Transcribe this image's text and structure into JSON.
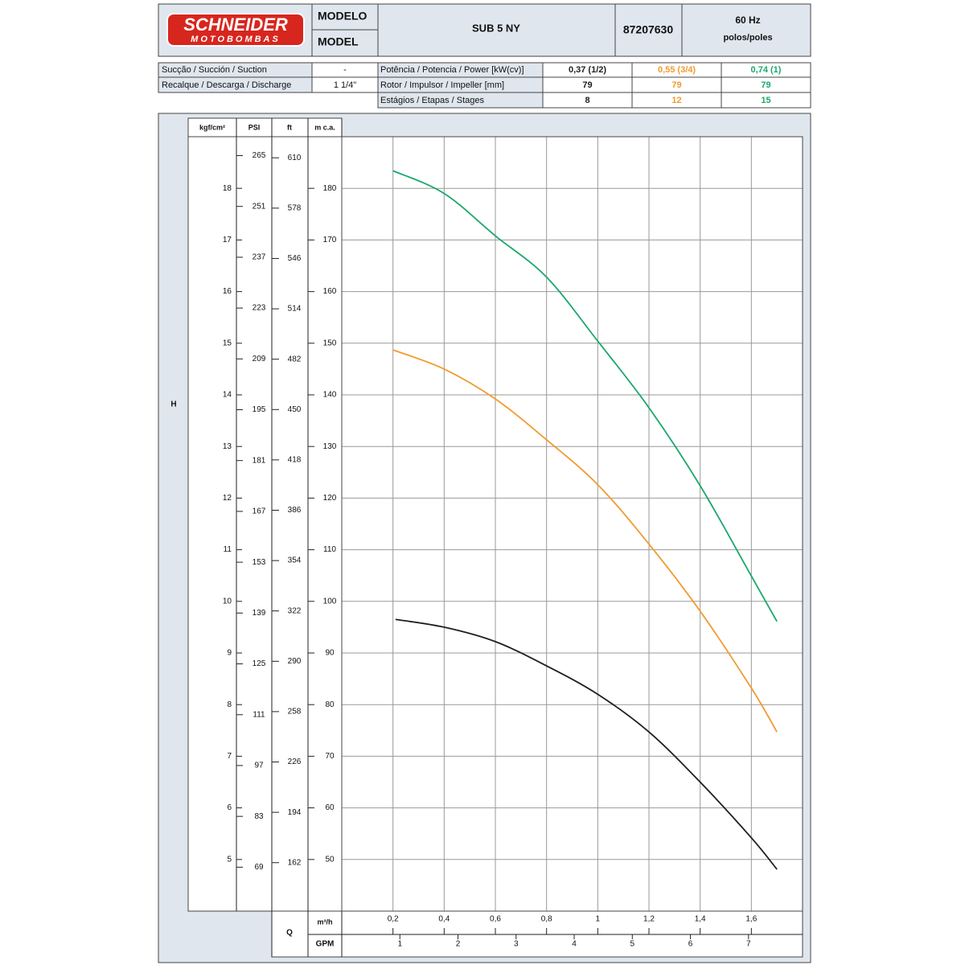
{
  "header": {
    "logo_top": "SCHNEIDER",
    "logo_bottom": "MOTOBOMBAS",
    "model_label_pt": "MODELO",
    "model_label_en": "MODEL",
    "model": "SUB 5 NY",
    "code": "87207630",
    "frequency": "60 Hz",
    "poles": "polos/poles"
  },
  "specs": {
    "suction_label": "Sucção / Succión / Suction",
    "suction": "-",
    "discharge_label": "Recalque / Descarga / Discharge",
    "discharge": "1 1/4\"",
    "power_label": "Potência / Potencia / Power [kW(cv)]",
    "impeller_label": "Rotor / Impulsor / Impeller [mm]",
    "stages_label": "Estágios / Etapas / Stages"
  },
  "chart_data": {
    "type": "line",
    "y_title": "H",
    "ylabel": "m c.a.",
    "ylim": [
      40,
      190
    ],
    "yticks": [
      50,
      60,
      70,
      80,
      90,
      100,
      110,
      120,
      130,
      140,
      150,
      160,
      170,
      180
    ],
    "y_axes": [
      {
        "label": "kgf/cm²",
        "ylim": [
          4,
          19
        ],
        "yticks": [
          5,
          6,
          7,
          8,
          9,
          10,
          11,
          12,
          13,
          14,
          15,
          16,
          17,
          18
        ]
      },
      {
        "label": "PSI",
        "ylim": [
          56.9,
          270.2
        ],
        "yticks": [
          69,
          83,
          97,
          111,
          125,
          139,
          153,
          167,
          181,
          195,
          209,
          223,
          237,
          251,
          265
        ]
      },
      {
        "label": "ft",
        "ylim": [
          131.2,
          623.4
        ],
        "yticks": [
          162,
          194,
          226,
          258,
          290,
          322,
          354,
          386,
          418,
          450,
          482,
          514,
          546,
          578,
          610
        ]
      }
    ],
    "x_title": "Q",
    "xlabel": "m³/h",
    "xlim": [
      0,
      1.8
    ],
    "xticks": [
      {
        "value": 0.2,
        "label": "0,2"
      },
      {
        "value": 0.4,
        "label": "0,4"
      },
      {
        "value": 0.6,
        "label": "0,6"
      },
      {
        "value": 0.8,
        "label": "0,8"
      },
      1,
      {
        "value": 1.2,
        "label": "1,2"
      },
      {
        "value": 1.4,
        "label": "1,4"
      },
      {
        "value": 1.6,
        "label": "1,6"
      }
    ],
    "x2label": "GPM",
    "x2lim": [
      0,
      7.93
    ],
    "x2ticks": [
      1,
      2,
      3,
      4,
      5,
      6,
      7
    ],
    "grid": true,
    "series": [
      {
        "name": "0,37 (1/2)",
        "impeller": 79,
        "stages": 8,
        "color": "#1e1e1e",
        "x": [
          0.21,
          0.4,
          0.6,
          0.8,
          1.0,
          1.2,
          1.4,
          1.6,
          1.7
        ],
        "values": [
          96.5,
          95,
          92.2,
          87.5,
          82,
          74.7,
          65,
          54.2,
          48.1
        ]
      },
      {
        "name": "0,55 (3/4)",
        "impeller": 79,
        "stages": 12,
        "color": "#f29a2e",
        "x": [
          0.2,
          0.4,
          0.6,
          0.8,
          1.0,
          1.2,
          1.4,
          1.6,
          1.7
        ],
        "values": [
          148.7,
          145,
          139.2,
          131.3,
          122.6,
          111.1,
          98.1,
          83.2,
          74.7
        ]
      },
      {
        "name": "0,74 (1)",
        "impeller": 79,
        "stages": 15,
        "color": "#1aa86a",
        "x": [
          0.2,
          0.4,
          0.6,
          0.8,
          1.0,
          1.2,
          1.4,
          1.6,
          1.7
        ],
        "values": [
          183.4,
          179,
          170.8,
          162.8,
          150.4,
          137.5,
          122.4,
          104.9,
          96.1
        ]
      }
    ]
  }
}
